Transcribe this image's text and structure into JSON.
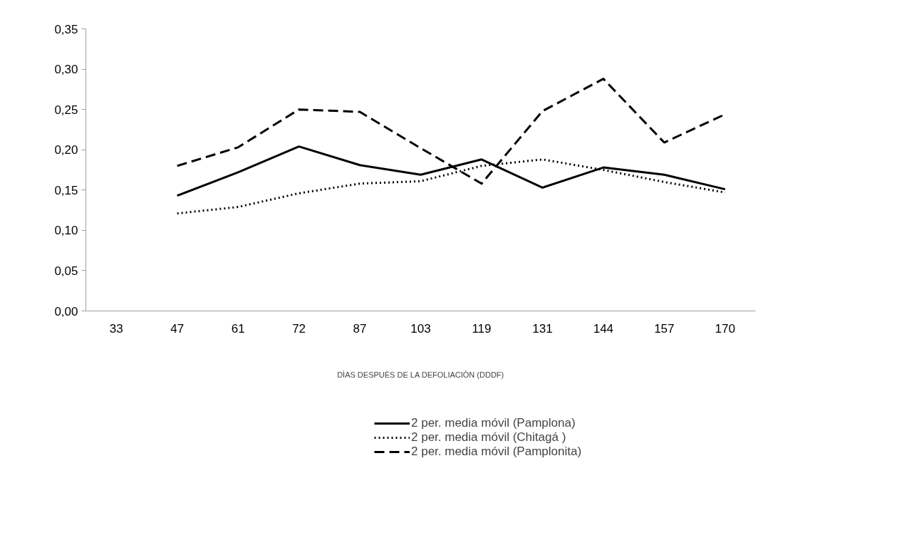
{
  "chart_data": {
    "type": "line",
    "xlabel": "DÌAS DESPUÈS DE LA DEFOLIACIÒN (DDDF)",
    "categories": [
      "33",
      "47",
      "61",
      "72",
      "87",
      "103",
      "119",
      "131",
      "144",
      "157",
      "170"
    ],
    "ylim": [
      0,
      0.35
    ],
    "yticks": [
      {
        "value": 0,
        "label": "0,00"
      },
      {
        "value": 0.05,
        "label": "0,05"
      },
      {
        "value": 0.1,
        "label": "0,10"
      },
      {
        "value": 0.15,
        "label": "0,15"
      },
      {
        "value": 0.2,
        "label": "0,20"
      },
      {
        "value": 0.25,
        "label": "0,25"
      },
      {
        "value": 0.3,
        "label": "0,30"
      },
      {
        "value": 0.35,
        "label": "0,35"
      }
    ],
    "grid": false,
    "legend": "bottom",
    "marker": "none",
    "series": [
      {
        "name": "2 per. media móvil (Pamplona)",
        "color": "#000000",
        "line_style": "solid",
        "values": [
          null,
          0.143,
          0.172,
          0.204,
          0.181,
          0.169,
          0.188,
          0.153,
          0.178,
          0.169,
          0.151
        ]
      },
      {
        "name": "2 per. media móvil (Chitagá )",
        "color": "#000000",
        "line_style": "dotted",
        "values": [
          null,
          0.121,
          0.129,
          0.146,
          0.158,
          0.161,
          0.18,
          0.188,
          0.175,
          0.16,
          0.147
        ]
      },
      {
        "name": "2 per. media móvil (Pamplonita)",
        "color": "#000000",
        "line_style": "dashed",
        "values": [
          null,
          0.18,
          0.203,
          0.25,
          0.247,
          0.202,
          0.158,
          0.248,
          0.288,
          0.209,
          0.244
        ]
      }
    ]
  }
}
